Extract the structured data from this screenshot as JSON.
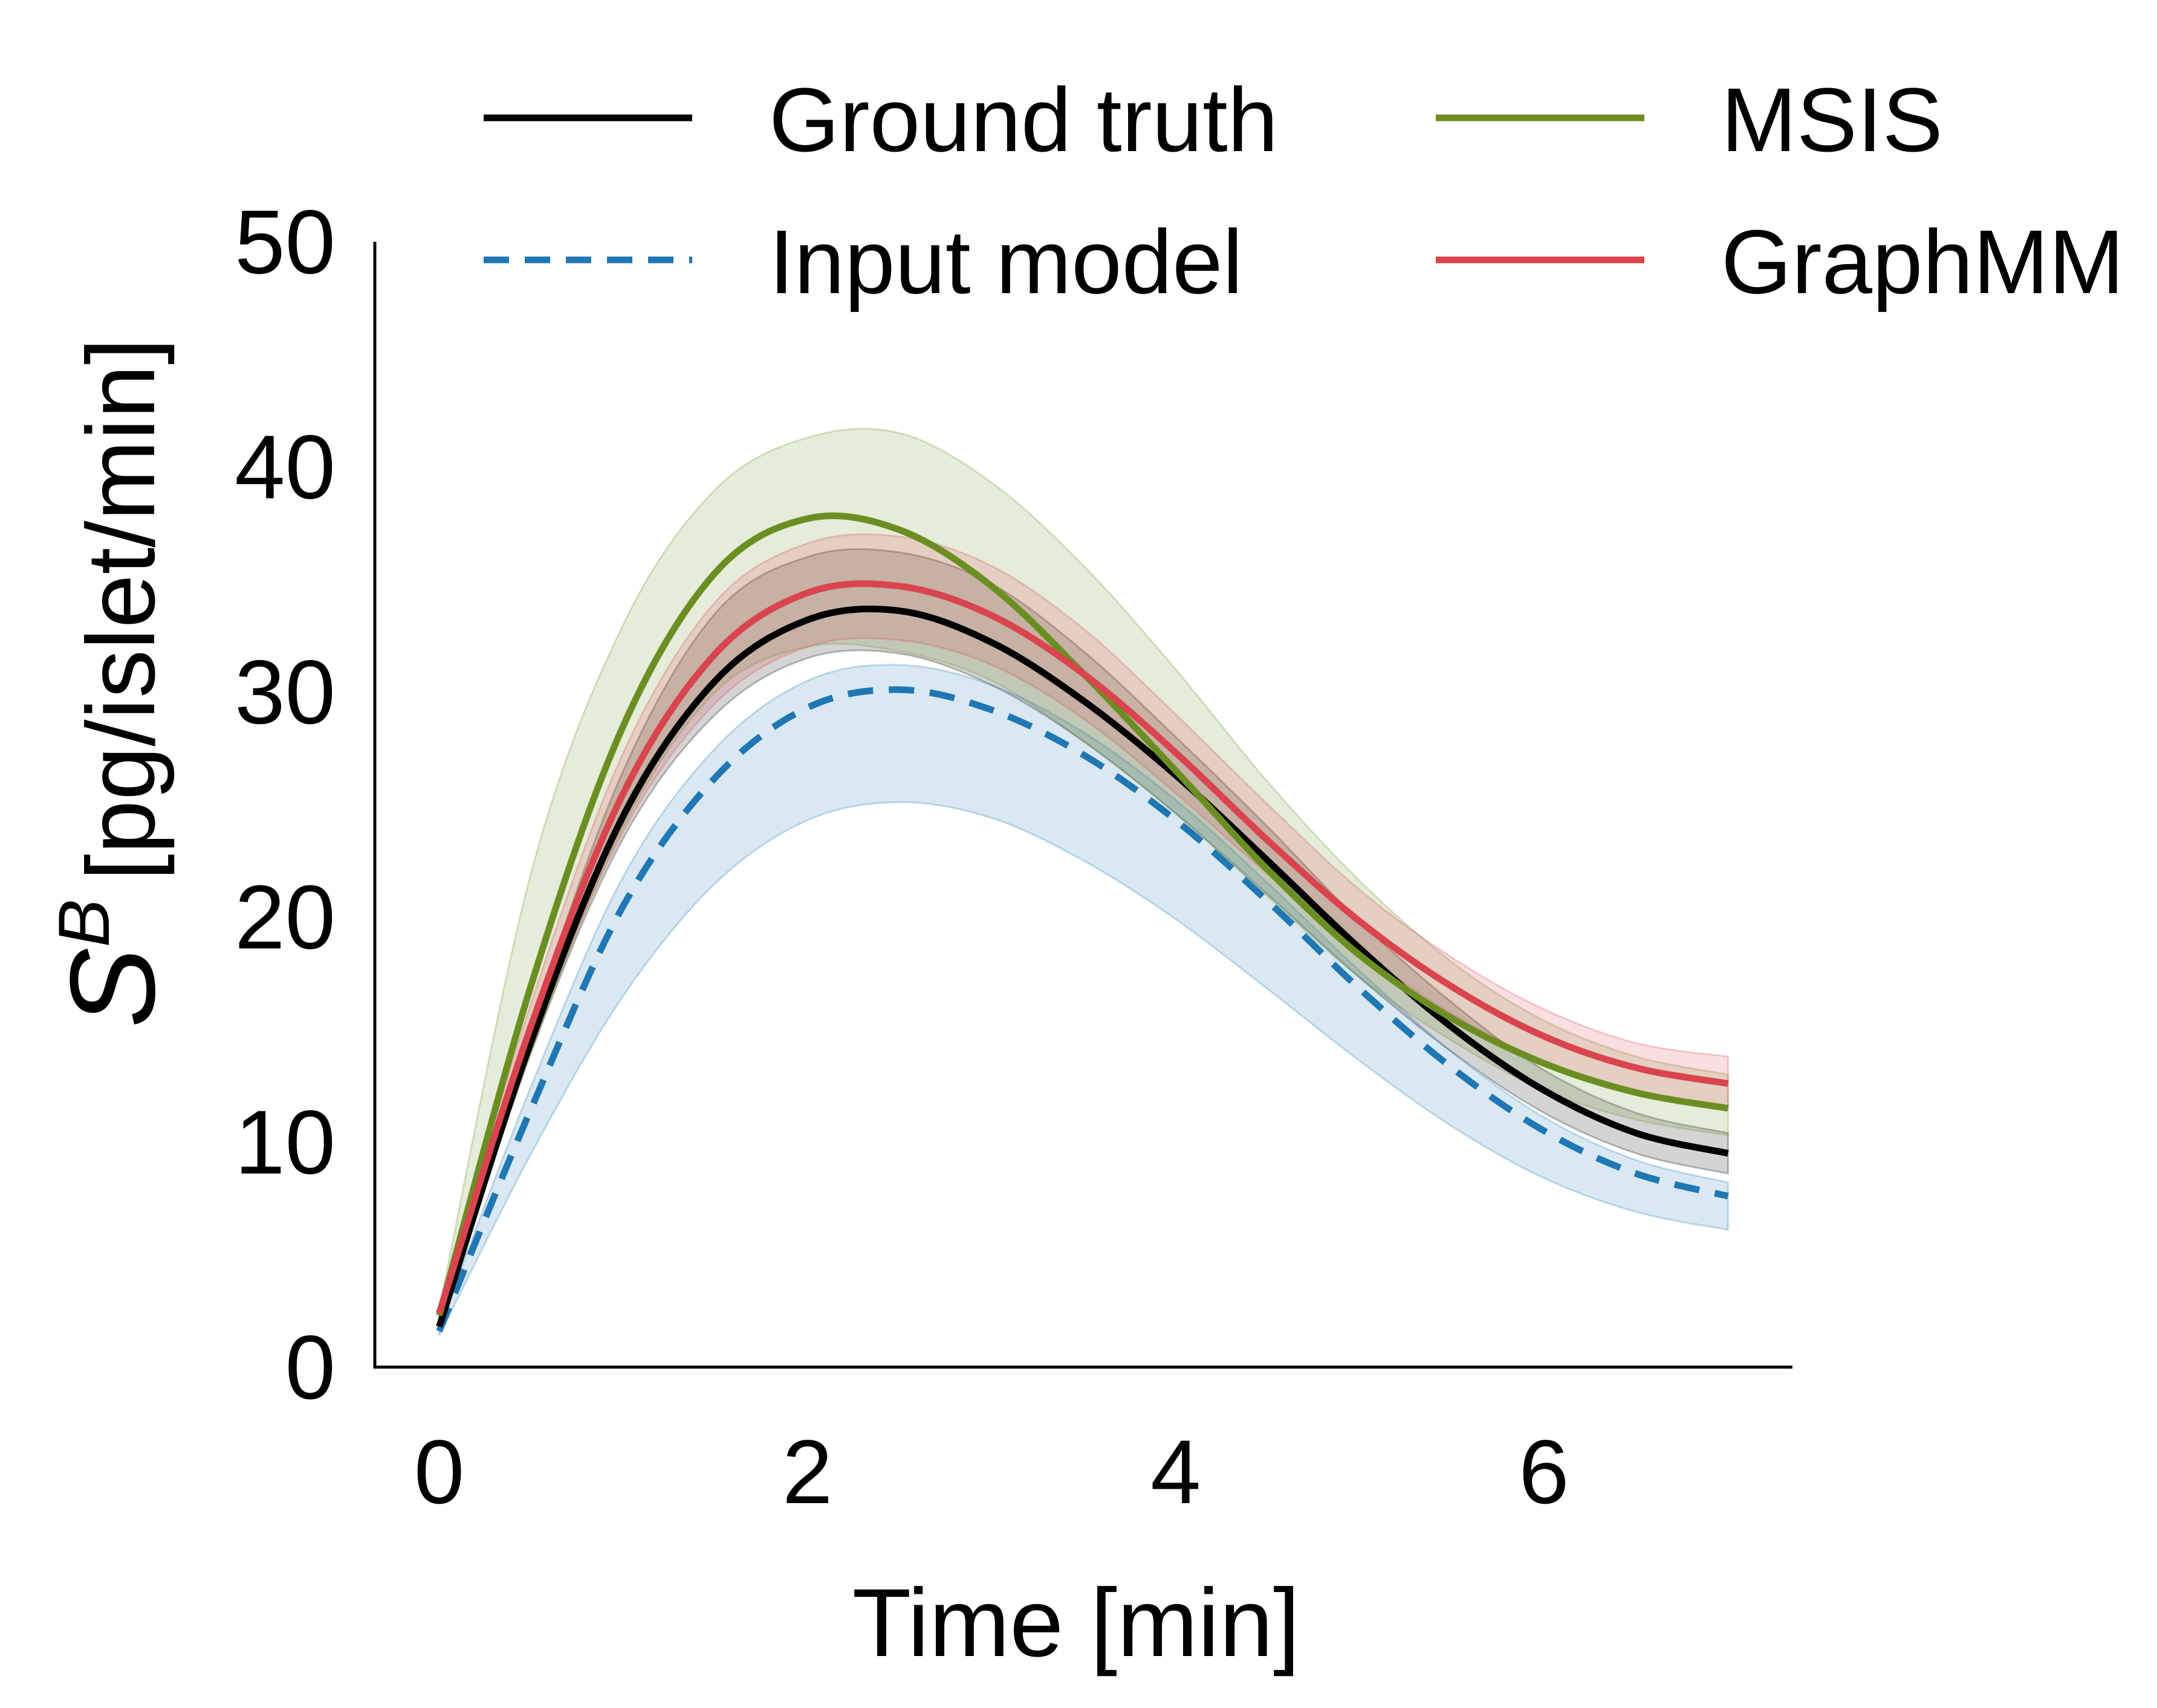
{
  "chart_data": {
    "type": "line",
    "title": "",
    "xlabel": "Time [min]",
    "ylabel_symbol": "S",
    "ylabel_superscript": "B",
    "ylabel_units": "[pg/islet/min]",
    "xlim": [
      -0.35,
      7.35
    ],
    "ylim": [
      0,
      50
    ],
    "xticks": [
      0,
      2,
      4,
      6
    ],
    "yticks": [
      0,
      10,
      20,
      30,
      40,
      50
    ],
    "grid": false,
    "legend_placement": "top",
    "x": [
      0,
      0.5,
      1,
      1.5,
      2,
      2.5,
      3,
      3.5,
      4,
      4.5,
      5,
      5.5,
      6,
      6.5,
      7
    ],
    "series": [
      {
        "name": "Ground truth",
        "color": "#000000",
        "dash": "solid",
        "values": [
          1.8,
          14.5,
          24.5,
          30.5,
          33.2,
          33.6,
          32.2,
          29.6,
          26.3,
          22.5,
          18.6,
          15.1,
          12.3,
          10.4,
          9.5
        ],
        "band_low": [
          1.6,
          14.0,
          23.5,
          29.0,
          31.5,
          31.7,
          30.3,
          27.8,
          24.6,
          21.0,
          17.3,
          14.0,
          11.3,
          9.5,
          8.6
        ],
        "band_high": [
          2.0,
          15.2,
          26.5,
          33.5,
          36.0,
          36.2,
          34.8,
          31.8,
          28.0,
          24.0,
          19.8,
          16.2,
          13.2,
          11.3,
          10.4
        ]
      },
      {
        "name": "Input model",
        "color": "#1f77b4",
        "dash": "dashed",
        "values": [
          1.6,
          11.5,
          20.5,
          26.2,
          29.3,
          30.1,
          29.2,
          27.2,
          24.3,
          20.7,
          16.8,
          13.3,
          10.5,
          8.6,
          7.6
        ],
        "band_low": [
          1.4,
          9.5,
          16.5,
          21.5,
          24.3,
          25.1,
          24.4,
          22.5,
          19.9,
          16.8,
          13.6,
          10.7,
          8.4,
          6.9,
          6.1
        ],
        "band_high": [
          1.8,
          12.5,
          21.8,
          27.5,
          30.5,
          31.2,
          30.3,
          28.2,
          25.2,
          21.5,
          17.6,
          14.0,
          11.1,
          9.2,
          8.2
        ]
      },
      {
        "name": "MSIS",
        "color": "#6b8e23",
        "dash": "solid",
        "values": [
          2.3,
          17.0,
          28.5,
          35.3,
          37.7,
          37.2,
          34.7,
          30.8,
          26.5,
          22.1,
          18.3,
          15.5,
          13.5,
          12.2,
          11.5
        ],
        "band_low": [
          2.0,
          14.0,
          24.0,
          30.0,
          32.0,
          31.8,
          30.5,
          27.8,
          24.6,
          20.9,
          17.3,
          14.5,
          12.3,
          11.0,
          10.3
        ],
        "band_high": [
          2.6,
          22.0,
          33.0,
          39.0,
          41.3,
          41.5,
          39.3,
          35.6,
          31.0,
          26.0,
          21.6,
          18.0,
          15.4,
          13.8,
          13.0
        ]
      },
      {
        "name": "GraphMM",
        "color": "#d9444e",
        "dash": "solid",
        "values": [
          2.4,
          15.2,
          25.5,
          31.7,
          34.4,
          34.7,
          33.4,
          30.8,
          27.3,
          23.4,
          19.8,
          16.9,
          14.7,
          13.3,
          12.6
        ],
        "band_low": [
          2.2,
          14.3,
          23.8,
          29.5,
          32.0,
          32.3,
          31.2,
          28.8,
          25.5,
          21.9,
          18.5,
          15.7,
          13.6,
          12.3,
          11.5
        ],
        "band_high": [
          2.6,
          16.2,
          27.3,
          34.0,
          36.6,
          36.9,
          35.6,
          32.8,
          29.0,
          25.0,
          21.2,
          18.2,
          15.9,
          14.4,
          13.8
        ]
      }
    ]
  }
}
